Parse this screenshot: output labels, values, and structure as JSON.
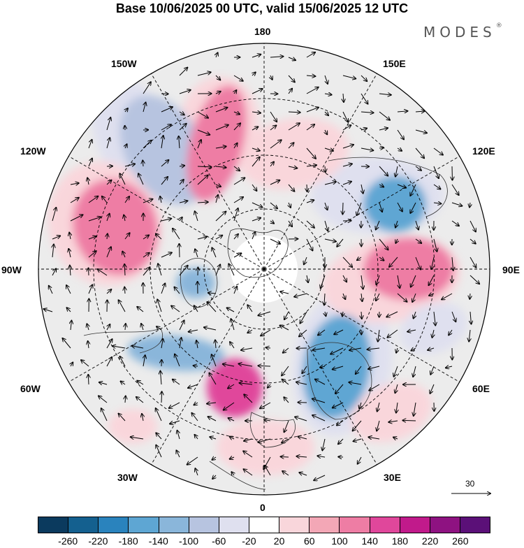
{
  "title": "Base 10/06/2025 00 UTC, valid 15/06/2025 12 UTC",
  "brand": "MODES",
  "brand_mark": "®",
  "longitude_labels": {
    "lon_180": "180",
    "lon_150w": "150W",
    "lon_150e": "150E",
    "lon_120w": "120W",
    "lon_120e": "120E",
    "lon_90w": "90W",
    "lon_90e": "90E",
    "lon_60w": "60W",
    "lon_60e": "60E",
    "lon_30w": "30W",
    "lon_30e": "30E",
    "lon_0": "0"
  },
  "reference_vector": "30",
  "colorbar": {
    "colors": [
      "#0b3a5e",
      "#14608f",
      "#2a83bd",
      "#5ea6d3",
      "#8ab6da",
      "#b7c4e0",
      "#dfe0ef",
      "#ffffff",
      "#f9d6db",
      "#f3a7b6",
      "#ee7da4",
      "#e0479b",
      "#c11a8b",
      "#8e1281",
      "#5b1078"
    ],
    "labels": [
      "-260",
      "-220",
      "-180",
      "-140",
      "-100",
      "-60",
      "-20",
      "20",
      "60",
      "100",
      "140",
      "180",
      "220",
      "260"
    ]
  },
  "anomalies": [
    {
      "name": "neg-150w",
      "value": -100
    },
    {
      "name": "neg-east-siberia",
      "value": -180
    },
    {
      "name": "neg-europe",
      "value": -180
    },
    {
      "name": "neg-atlantic",
      "value": -140
    },
    {
      "name": "neg-greenland",
      "value": -140
    },
    {
      "name": "pos-atlantic",
      "value": 140
    },
    {
      "name": "pos-pacific",
      "value": 100
    },
    {
      "name": "pos-canada",
      "value": 100
    },
    {
      "name": "pos-siberia",
      "value": 100
    }
  ]
}
